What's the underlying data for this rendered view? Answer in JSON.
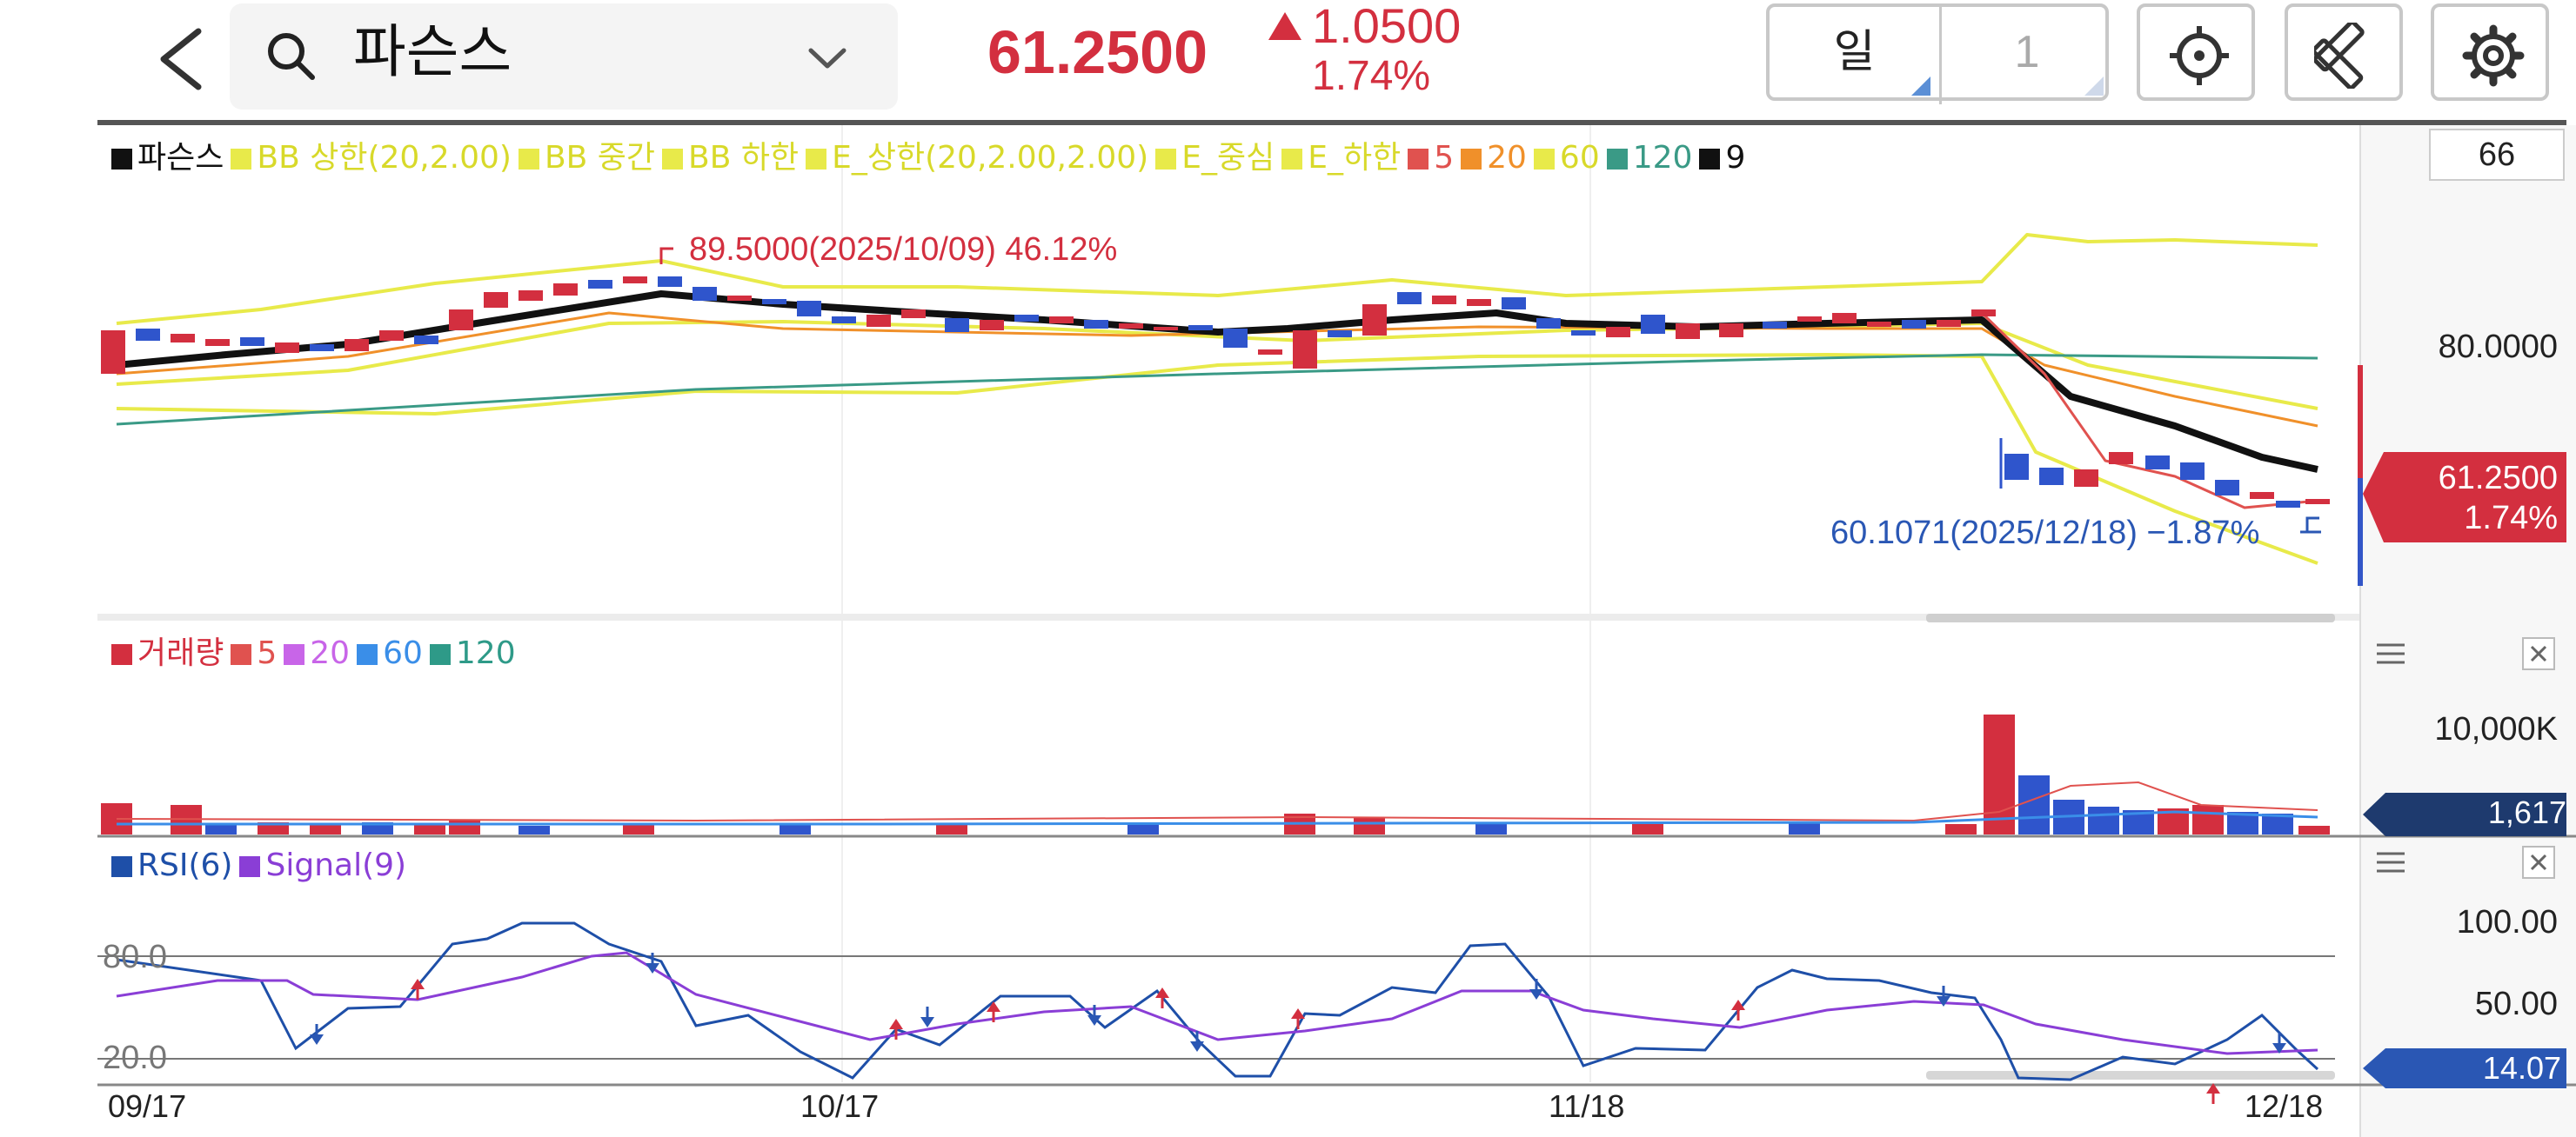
{
  "header": {
    "back_icon": "chevron-left-icon",
    "search_icon": "search-icon",
    "stock_name": "파슨스",
    "dropdown_icon": "chevron-down-icon",
    "price": "61.2500",
    "change_value": "1.0500",
    "change_pct": "1.74%",
    "up_color": "#d32f3f",
    "period_unit": "일",
    "period_count": "1",
    "crosshair_icon": "crosshair-icon",
    "drawing_icon": "drawing-tools-icon",
    "settings_icon": "gear-icon"
  },
  "price_panel": {
    "legend": [
      {
        "label": "파슨스",
        "color": "#111111"
      },
      {
        "label": "BB 상한(20,2.00)",
        "color": "#e8ea4a"
      },
      {
        "label": "BB 중간",
        "color": "#e8ea4a"
      },
      {
        "label": "BB 하한",
        "color": "#e8ea4a"
      },
      {
        "label": "E_상한(20,2.00,2.00)",
        "color": "#e8ea4a"
      },
      {
        "label": "E_중심",
        "color": "#e8ea4a"
      },
      {
        "label": "E_하한",
        "color": "#e8ea4a"
      },
      {
        "label": "5",
        "color": "#e0524f"
      },
      {
        "label": "20",
        "color": "#f0902a"
      },
      {
        "label": "60",
        "color": "#e8ea4a"
      },
      {
        "label": "120",
        "color": "#3a9a86"
      },
      {
        "label": "9",
        "color": "#111111"
      }
    ],
    "box_value": "66",
    "y_tick": "80.0000",
    "high_annotation": "89.5000(2025/10/09) 46.12%",
    "low_annotation": "60.1071(2025/12/18) −1.87%",
    "current_tag_price": "61.2500",
    "current_tag_pct": "1.74%"
  },
  "volume_panel": {
    "legend": [
      {
        "label": "거래량",
        "color": "#d32f3f"
      },
      {
        "label": "5",
        "color": "#e0524f"
      },
      {
        "label": "20",
        "color": "#c865e8"
      },
      {
        "label": "60",
        "color": "#3a8ee8"
      },
      {
        "label": "120",
        "color": "#2e9a88"
      }
    ],
    "y_tick": "10,000K",
    "current_tag": "1,617",
    "menu_icon": "hamburger-icon",
    "close_icon": "close-icon"
  },
  "rsi_panel": {
    "legend": [
      {
        "label": "RSI(6)",
        "color": "#1e4fa8"
      },
      {
        "label": "Signal(9)",
        "color": "#8a3ed6"
      }
    ],
    "y_ticks": [
      "100.00",
      "50.00"
    ],
    "levels": [
      "80.0",
      "20.0"
    ],
    "current_tag": "14.07",
    "menu_icon": "hamburger-icon",
    "close_icon": "close-icon"
  },
  "x_axis": {
    "dates": [
      "09/17",
      "10/17",
      "11/18",
      "12/18"
    ]
  }
}
